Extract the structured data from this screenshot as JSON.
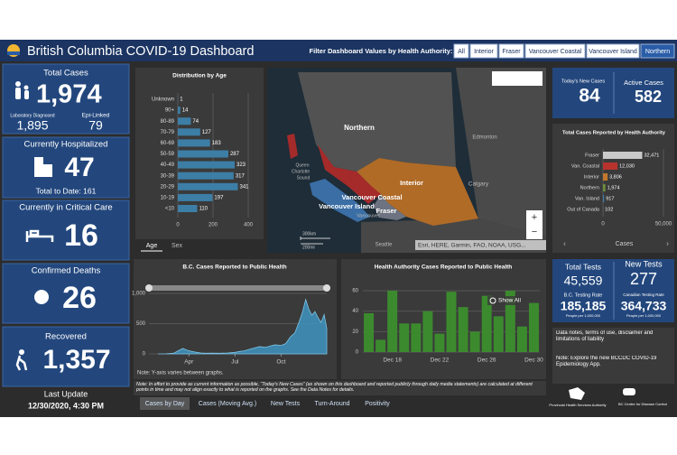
{
  "header": {
    "title": "British Columbia COVID-19 Dashboard",
    "filter_label": "Filter Dashboard Values by Health Authority:",
    "filter_buttons": [
      "All",
      "Interior",
      "Fraser",
      "Vancouver Coastal",
      "Vancouver Island",
      "Northern"
    ]
  },
  "stats": {
    "total_cases": {
      "label": "Total Cases",
      "value": "1,974",
      "lab_label": "Laboratory Diagnosed",
      "lab_value": "1,895",
      "epi_label": "Epi-Linked",
      "epi_value": "79"
    },
    "hospitalized": {
      "label": "Currently Hospitalized",
      "value": "47",
      "total": "Total to Date: 161"
    },
    "critical_care": {
      "label": "Currently in Critical Care",
      "value": "16"
    },
    "deaths": {
      "label": "Confirmed Deaths",
      "value": "26"
    },
    "recovered": {
      "label": "Recovered",
      "value": "1,357"
    },
    "last_update": {
      "label": "Last Update",
      "value": "12/30/2020, 4:30 PM"
    },
    "new_cases": {
      "label": "Today's New Cases",
      "value": "84"
    },
    "active_cases": {
      "label": "Active Cases",
      "value": "582"
    },
    "total_tests": {
      "label": "Total Tests",
      "value": "45,559"
    },
    "new_tests": {
      "label": "New Tests",
      "value": "277"
    },
    "bc_rate": {
      "label": "B.C. Testing Rate",
      "value": "185,185",
      "unit": "People per 1,000,000"
    },
    "canada_rate": {
      "label": "Canadian Testing Rate",
      "value": "364,733",
      "unit": "People per 1,000,000"
    }
  },
  "age_tabs": [
    "Age",
    "Sex"
  ],
  "map": {
    "labels": [
      "Northern",
      "Interior",
      "Vancouver Coastal",
      "Vancouver Island",
      "Fraser",
      "Edmonton",
      "Calgary",
      "Seattle",
      "Queen",
      "Charlotte",
      "Sound",
      "Vancouver"
    ],
    "scale_km": "300km",
    "scale_mi": "200mi",
    "attribution": "Esri, HERE, Garmin, FAO, NOAA, USG..."
  },
  "notes": {
    "link": "Data notes, terms of use, disclaimer and limitations of liability",
    "explore": "Note: Explore the new BCCDC COVID-19 Epidemiology App."
  },
  "logos": [
    "Provincial Health Services Authority",
    "BC Centre for Disease Control"
  ],
  "footer": {
    "note": "Note: In effort to provide as current information as possible, “Today's New Cases” (as shown on this dashboard and reported publicly through daily media statements) are calculated at different points in time and may not align exactly to what is reported on the graphs. See the Data Notes for details.",
    "tabs": [
      "Cases by Day",
      "Cases (Moving Avg.)",
      "New Tests",
      "Turn-Around",
      "Positivity"
    ]
  },
  "chart_data": [
    {
      "type": "bar",
      "orientation": "horizontal",
      "title": "Distribution by Age",
      "categories": [
        "Unknown",
        "90+",
        "80-89",
        "70-79",
        "60-69",
        "50-59",
        "40-49",
        "30-39",
        "20-29",
        "10-19",
        "<10"
      ],
      "values": [
        1,
        14,
        74,
        127,
        183,
        287,
        323,
        317,
        341,
        197,
        110
      ],
      "color": "#3d7ea6",
      "xlim": [
        0,
        400
      ],
      "xticks": [
        0,
        200,
        400
      ],
      "grid": true
    },
    {
      "type": "bar",
      "orientation": "horizontal",
      "title": "Total Cases Reported by Health Authority",
      "categories": [
        "Fraser",
        "Van. Coastal",
        "Interior",
        "Northern",
        "Van. Island",
        "Out of Canada"
      ],
      "values": [
        32471,
        12030,
        3806,
        1974,
        917,
        102
      ],
      "value_labels": [
        "32,471",
        "12,030",
        "3,806",
        "1,974",
        "917",
        "102"
      ],
      "colors": [
        "#c9c9c9",
        "#b8332e",
        "#c2782e",
        "#6b8f3a",
        "#3d7ea6",
        "#8a8a8a"
      ],
      "xlim": [
        0,
        50000
      ],
      "xticks": [
        0,
        {
          "value": 50000,
          "label": "50,000"
        }
      ],
      "x_label": "Cases",
      "grid": true
    },
    {
      "type": "area",
      "title": "B.C. Cases Reported to Public Health",
      "x": [
        2.0,
        2.5,
        3.0,
        3.3,
        3.6,
        3.9,
        4.2,
        4.5,
        4.8,
        5.1,
        5.5,
        6.0,
        6.5,
        7.0,
        7.3,
        7.6,
        8.0,
        8.3,
        8.6,
        9.0,
        9.3,
        9.6,
        10.0,
        10.3,
        10.6,
        10.9,
        11.2,
        11.4,
        11.6,
        11.8,
        12.0,
        12.2,
        12.4,
        12.6,
        12.8,
        12.97
      ],
      "values": [
        0,
        2,
        10,
        50,
        90,
        60,
        40,
        25,
        15,
        10,
        12,
        10,
        15,
        25,
        40,
        50,
        80,
        100,
        120,
        110,
        130,
        150,
        140,
        170,
        280,
        350,
        550,
        700,
        900,
        740,
        640,
        700,
        600,
        520,
        650,
        420
      ],
      "color": "#3f8fb8",
      "xlim": [
        1.4,
        12.97
      ],
      "ylim": [
        0,
        1000
      ],
      "xticks": [
        {
          "value": 4,
          "label": "Apr"
        },
        {
          "value": 7,
          "label": "Jul"
        },
        {
          "value": 10,
          "label": "Oct"
        }
      ],
      "yticks": [
        0,
        500,
        {
          "value": 1000,
          "label": "1,000"
        }
      ],
      "grid": true,
      "note": "Note: Y-axis varies between graphs."
    },
    {
      "type": "bar",
      "orientation": "vertical",
      "title": "Health Authority Cases Reported to Public Health",
      "categories": [
        null,
        null,
        "Dec 18",
        null,
        null,
        null,
        "Dec 22",
        null,
        null,
        null,
        "Dec 26",
        null,
        null,
        null,
        "Dec 30"
      ],
      "values": [
        38,
        12,
        60,
        28,
        28,
        40,
        18,
        59,
        44,
        20,
        55,
        35,
        60,
        25,
        48
      ],
      "color": "#3c8a2e",
      "ylim": [
        0,
        60
      ],
      "yticks": [
        0,
        20,
        40,
        60
      ],
      "grid": true,
      "button": "Show All"
    }
  ]
}
